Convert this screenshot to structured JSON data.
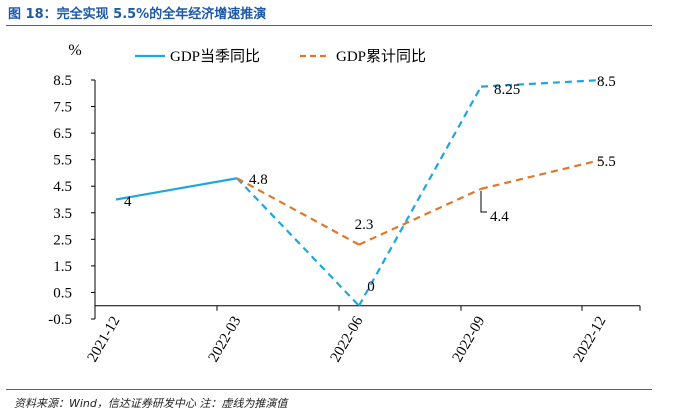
{
  "header": {
    "title": "图 18：完全实现 5.5%的全年经济增速推演"
  },
  "footer": {
    "source": "资料来源：Wind，信达证券研发中心    注：虚线为推演值"
  },
  "colors": {
    "header_blue": "#1d5aa8",
    "quarterly_line": "#1ea6e0",
    "cumulative_line": "#e0782c"
  },
  "chart_data": {
    "type": "line",
    "unit_label": "%",
    "categories": [
      "2021-12",
      "2022-03",
      "2022-06",
      "2022-09",
      "2022-12"
    ],
    "ylim": [
      -0.5,
      8.5
    ],
    "yticks": [
      "-0.5",
      "0.5",
      "1.5",
      "2.5",
      "3.5",
      "4.5",
      "5.5",
      "6.5",
      "7.5",
      "8.5"
    ],
    "legend_position": "top",
    "series": [
      {
        "name": "GDP当季同比",
        "color": "#1ea6e0",
        "values": [
          4,
          4.8,
          0,
          8.25,
          8.5
        ],
        "labels": [
          "4",
          "4.8",
          "0",
          "8.25",
          "8.5"
        ],
        "actual_until_index": 1
      },
      {
        "name": "GDP累计同比",
        "color": "#e0782c",
        "values": [
          null,
          4.8,
          2.3,
          4.4,
          5.5
        ],
        "labels": [
          "",
          "",
          "2.3",
          "4.4",
          "5.5"
        ],
        "actual_until_index": 0
      }
    ]
  }
}
